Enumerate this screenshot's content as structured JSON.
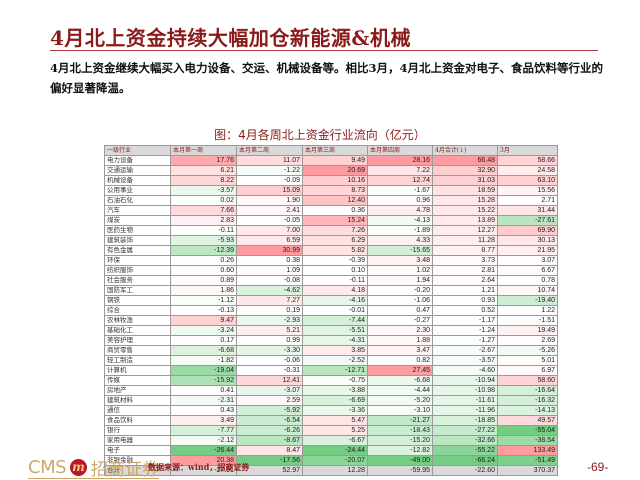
{
  "title": "4月北上资金持续大幅加仓新能源&机械",
  "summary": "4月北上资金继续大幅买入电力设备、交运、机械设备等。相比3月，4月北上资金对电子、食品饮料等行业的偏好显著降温。",
  "chart_title": "图：4月各周北上资金行业流向（亿元）",
  "colors": {
    "title": "#8b1a1a",
    "positive_strong": "#f4a7ab",
    "positive_light": "#fde4e5",
    "negative_strong": "#7fc98f",
    "negative_light": "#e3f3e6",
    "header_bg": "#d9d9d9"
  },
  "table": {
    "headers": [
      "一级行业",
      "本月第一周",
      "本月第二周",
      "本月第三周",
      "本月第四周",
      "4月合计(↓)",
      "3月"
    ],
    "rows": [
      {
        "industry": "电力设备",
        "w1": "17.76",
        "w2": "11.07",
        "w3": "9.49",
        "w4": "28.16",
        "total": "66.48",
        "mar": "58.66"
      },
      {
        "industry": "交通运输",
        "w1": "6.21",
        "w2": "-1.22",
        "w3": "20.69",
        "w4": "7.22",
        "total": "32.90",
        "mar": "24.58"
      },
      {
        "industry": "机械设备",
        "w1": "8.22",
        "w2": "-0.09",
        "w3": "10.16",
        "w4": "12.74",
        "total": "31.03",
        "mar": "63.10"
      },
      {
        "industry": "公用事业",
        "w1": "-3.57",
        "w2": "15.09",
        "w3": "8.73",
        "w4": "-1.67",
        "total": "18.59",
        "mar": "15.56"
      },
      {
        "industry": "石油石化",
        "w1": "0.02",
        "w2": "1.90",
        "w3": "12.40",
        "w4": "0.96",
        "total": "15.28",
        "mar": "2.71"
      },
      {
        "industry": "汽车",
        "w1": "7.66",
        "w2": "2.41",
        "w3": "0.36",
        "w4": "4.78",
        "total": "15.22",
        "mar": "31.44"
      },
      {
        "industry": "煤炭",
        "w1": "2.83",
        "w2": "-0.05",
        "w3": "15.24",
        "w4": "-4.13",
        "total": "13.89",
        "mar": "-27.61"
      },
      {
        "industry": "医药生物",
        "w1": "-0.11",
        "w2": "7.00",
        "w3": "7.26",
        "w4": "-1.89",
        "total": "12.27",
        "mar": "69.90"
      },
      {
        "industry": "建筑装饰",
        "w1": "-5.93",
        "w2": "6.59",
        "w3": "6.29",
        "w4": "4.33",
        "total": "11.28",
        "mar": "30.13"
      },
      {
        "industry": "有色金属",
        "w1": "-12.39",
        "w2": "30.99",
        "w3": "5.82",
        "w4": "-15.65",
        "total": "8.77",
        "mar": "21.95"
      },
      {
        "industry": "环保",
        "w1": "0.26",
        "w2": "0.38",
        "w3": "-0.39",
        "w4": "3.48",
        "total": "3.73",
        "mar": "3.07"
      },
      {
        "industry": "纺织服饰",
        "w1": "0.60",
        "w2": "1.09",
        "w3": "0.10",
        "w4": "1.02",
        "total": "2.81",
        "mar": "6.67"
      },
      {
        "industry": "社会服务",
        "w1": "0.89",
        "w2": "-0.08",
        "w3": "-0.11",
        "w4": "1.94",
        "total": "2.64",
        "mar": "0.78"
      },
      {
        "industry": "国防军工",
        "w1": "1.86",
        "w2": "-4.62",
        "w3": "4.18",
        "w4": "-0.20",
        "total": "1.21",
        "mar": "10.74"
      },
      {
        "industry": "钢铁",
        "w1": "-1.12",
        "w2": "7.27",
        "w3": "-4.16",
        "w4": "-1.06",
        "total": "0.93",
        "mar": "-19.40"
      },
      {
        "industry": "综合",
        "w1": "-0.13",
        "w2": "0.19",
        "w3": "-0.01",
        "w4": "0.47",
        "total": "0.52",
        "mar": "1.22"
      },
      {
        "industry": "农林牧渔",
        "w1": "9.47",
        "w2": "-2.93",
        "w3": "-7.44",
        "w4": "-0.27",
        "total": "-1.17",
        "mar": "-1.51"
      },
      {
        "industry": "基础化工",
        "w1": "-3.24",
        "w2": "5.21",
        "w3": "-5.51",
        "w4": "2.30",
        "total": "-1.24",
        "mar": "19.49"
      },
      {
        "industry": "美容护理",
        "w1": "0.17",
        "w2": "0.99",
        "w3": "-4.31",
        "w4": "1.88",
        "total": "-1.27",
        "mar": "2.69"
      },
      {
        "industry": "商贸零售",
        "w1": "-6.68",
        "w2": "-3.30",
        "w3": "3.85",
        "w4": "3.47",
        "total": "-2.67",
        "mar": "-5.26"
      },
      {
        "industry": "轻工制造",
        "w1": "-1.82",
        "w2": "-0.06",
        "w3": "-2.52",
        "w4": "0.82",
        "total": "-3.57",
        "mar": "5.01"
      },
      {
        "industry": "计算机",
        "w1": "-19.04",
        "w2": "-0.31",
        "w3": "-12.71",
        "w4": "27.45",
        "total": "-4.60",
        "mar": "6.97"
      },
      {
        "industry": "传媒",
        "w1": "-15.92",
        "w2": "12.41",
        "w3": "-0.75",
        "w4": "-6.68",
        "total": "-10.94",
        "mar": "58.60"
      },
      {
        "industry": "房地产",
        "w1": "0.41",
        "w2": "-3.07",
        "w3": "-3.88",
        "w4": "-4.44",
        "total": "-10.98",
        "mar": "-16.64"
      },
      {
        "industry": "建筑材料",
        "w1": "-2.31",
        "w2": "2.59",
        "w3": "-6.69",
        "w4": "-5.20",
        "total": "-11.61",
        "mar": "-16.32"
      },
      {
        "industry": "通信",
        "w1": "0.43",
        "w2": "-5.92",
        "w3": "-3.36",
        "w4": "-3.10",
        "total": "-11.96",
        "mar": "-14.13"
      },
      {
        "industry": "食品饮料",
        "w1": "3.49",
        "w2": "-6.54",
        "w3": "5.47",
        "w4": "-21.27",
        "total": "-18.85",
        "mar": "49.57"
      },
      {
        "industry": "银行",
        "w1": "-7.77",
        "w2": "-6.26",
        "w3": "5.25",
        "w4": "-18.43",
        "total": "-27.22",
        "mar": "-55.04"
      },
      {
        "industry": "家用电器",
        "w1": "-2.12",
        "w2": "-8.67",
        "w3": "-6.67",
        "w4": "-15.20",
        "total": "-32.66",
        "mar": "-38.54"
      },
      {
        "industry": "电子",
        "w1": "-26.44",
        "w2": "8.47",
        "w3": "-24.44",
        "w4": "-12.82",
        "total": "-55.22",
        "mar": "133.49"
      },
      {
        "industry": "非银金融",
        "w1": "20.38",
        "w2": "-17.56",
        "w3": "-20.07",
        "w4": "-49.00",
        "total": "-66.24",
        "mar": "-51.49"
      }
    ],
    "total_row": {
      "industry": "合计",
      "w1": "-27.91",
      "w2": "52.97",
      "w3": "12.28",
      "w4": "-59.95",
      "total": "-22.60",
      "mar": "370.37"
    }
  },
  "footer": {
    "logo_text": "CMS",
    "logo_badge": "m",
    "logo_cn": "招商证券",
    "source": "数据来源：wind，招商证券",
    "page": "-69-"
  }
}
